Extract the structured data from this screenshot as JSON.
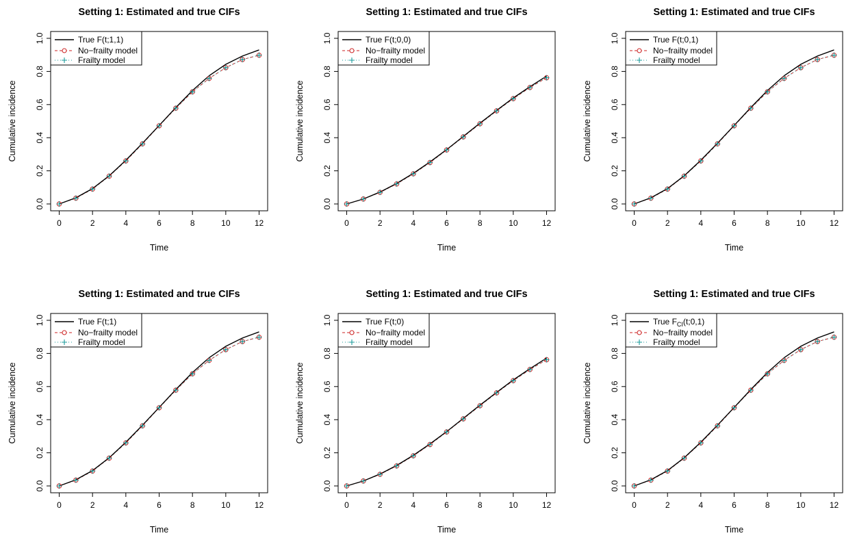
{
  "colors": {
    "true_line": "#000000",
    "no_frailty": "#cc2222",
    "frailty": "#1a9a9a",
    "background": "#ffffff"
  },
  "chart_data": [
    {
      "type": "line",
      "title": "Setting 1: Estimated and true CIFs",
      "xlabel": "Time",
      "ylabel": "Cumulative incidence",
      "xlim": [
        0,
        12
      ],
      "ylim": [
        0,
        1
      ],
      "xticks": [
        0,
        2,
        4,
        6,
        8,
        10,
        12
      ],
      "yticks": [
        0.0,
        0.2,
        0.4,
        0.6,
        0.8,
        1.0
      ],
      "ytick_labels": [
        "0.0",
        "0.2",
        "0.4",
        "0.6",
        "0.8",
        "1.0"
      ],
      "grid": false,
      "legend_position": "top-left",
      "legend": [
        {
          "label": "True F(t;1,1)",
          "style": "solid line"
        },
        {
          "label": "No−frailty model",
          "style": "dashed line with circles"
        },
        {
          "label": "Frailty model",
          "style": "dotted line with plus"
        }
      ],
      "x": [
        0,
        1,
        2,
        3,
        4,
        5,
        6,
        7,
        8,
        9,
        10,
        11,
        12
      ],
      "series": [
        {
          "name": "True F(t;1,1)",
          "values": [
            0.0,
            0.037,
            0.093,
            0.17,
            0.264,
            0.367,
            0.474,
            0.582,
            0.685,
            0.774,
            0.843,
            0.893,
            0.93
          ]
        },
        {
          "name": "No−frailty model",
          "values": [
            0.0,
            0.035,
            0.09,
            0.168,
            0.26,
            0.363,
            0.472,
            0.578,
            0.677,
            0.758,
            0.823,
            0.872,
            0.898
          ]
        },
        {
          "name": "Frailty model",
          "values": [
            0.0,
            0.035,
            0.09,
            0.168,
            0.26,
            0.363,
            0.472,
            0.578,
            0.677,
            0.758,
            0.823,
            0.872,
            0.898
          ]
        }
      ]
    },
    {
      "type": "line",
      "title": "Setting 1: Estimated and true CIFs",
      "xlabel": "Time",
      "ylabel": "Cumulative incidence",
      "xlim": [
        0,
        12
      ],
      "ylim": [
        0,
        1
      ],
      "xticks": [
        0,
        2,
        4,
        6,
        8,
        10,
        12
      ],
      "yticks": [
        0.0,
        0.2,
        0.4,
        0.6,
        0.8,
        1.0
      ],
      "ytick_labels": [
        "0.0",
        "0.2",
        "0.4",
        "0.6",
        "0.8",
        "1.0"
      ],
      "grid": false,
      "legend_position": "top-left",
      "legend": [
        {
          "label": "True F(t;0,0)",
          "style": "solid line"
        },
        {
          "label": "No−frailty model",
          "style": "dashed line with circles"
        },
        {
          "label": "Frailty model",
          "style": "dotted line with plus"
        }
      ],
      "x": [
        0,
        1,
        2,
        3,
        4,
        5,
        6,
        7,
        8,
        9,
        10,
        11,
        12
      ],
      "series": [
        {
          "name": "True F(t;0,0)",
          "values": [
            0.0,
            0.03,
            0.072,
            0.124,
            0.185,
            0.254,
            0.328,
            0.408,
            0.488,
            0.565,
            0.64,
            0.708,
            0.772
          ]
        },
        {
          "name": "No−frailty model",
          "values": [
            0.0,
            0.03,
            0.07,
            0.121,
            0.182,
            0.25,
            0.326,
            0.405,
            0.484,
            0.562,
            0.636,
            0.703,
            0.762
          ]
        },
        {
          "name": "Frailty model",
          "values": [
            0.0,
            0.03,
            0.07,
            0.121,
            0.182,
            0.25,
            0.326,
            0.405,
            0.484,
            0.562,
            0.636,
            0.703,
            0.762
          ]
        }
      ]
    },
    {
      "type": "line",
      "title": "Setting 1: Estimated and true CIFs",
      "xlabel": "Time",
      "ylabel": "Cumulative incidence",
      "xlim": [
        0,
        12
      ],
      "ylim": [
        0,
        1
      ],
      "xticks": [
        0,
        2,
        4,
        6,
        8,
        10,
        12
      ],
      "yticks": [
        0.0,
        0.2,
        0.4,
        0.6,
        0.8,
        1.0
      ],
      "ytick_labels": [
        "0.0",
        "0.2",
        "0.4",
        "0.6",
        "0.8",
        "1.0"
      ],
      "grid": false,
      "legend_position": "top-left",
      "legend": [
        {
          "label": "True F(t;0,1)",
          "style": "solid line"
        },
        {
          "label": "No−frailty model",
          "style": "dashed line with circles"
        },
        {
          "label": "Frailty model",
          "style": "dotted line with plus"
        }
      ],
      "x": [
        0,
        1,
        2,
        3,
        4,
        5,
        6,
        7,
        8,
        9,
        10,
        11,
        12
      ],
      "series": [
        {
          "name": "True F(t;0,1)",
          "values": [
            0.0,
            0.037,
            0.093,
            0.17,
            0.264,
            0.367,
            0.474,
            0.582,
            0.685,
            0.774,
            0.843,
            0.893,
            0.93
          ]
        },
        {
          "name": "No−frailty model",
          "values": [
            0.0,
            0.035,
            0.09,
            0.168,
            0.26,
            0.363,
            0.472,
            0.578,
            0.677,
            0.758,
            0.823,
            0.872,
            0.898
          ]
        },
        {
          "name": "Frailty model",
          "values": [
            0.0,
            0.035,
            0.09,
            0.168,
            0.26,
            0.363,
            0.472,
            0.578,
            0.677,
            0.758,
            0.823,
            0.872,
            0.898
          ]
        }
      ]
    },
    {
      "type": "line",
      "title": "Setting 1: Estimated and true CIFs",
      "xlabel": "Time",
      "ylabel": "Cumulative incidence",
      "xlim": [
        0,
        12
      ],
      "ylim": [
        0,
        1
      ],
      "xticks": [
        0,
        2,
        4,
        6,
        8,
        10,
        12
      ],
      "yticks": [
        0.0,
        0.2,
        0.4,
        0.6,
        0.8,
        1.0
      ],
      "ytick_labels": [
        "0.0",
        "0.2",
        "0.4",
        "0.6",
        "0.8",
        "1.0"
      ],
      "grid": false,
      "legend_position": "top-left",
      "legend": [
        {
          "label": "True F(t;1)",
          "style": "solid line"
        },
        {
          "label": "No−frailty model",
          "style": "dashed line with circles"
        },
        {
          "label": "Frailty model",
          "style": "dotted line with plus"
        }
      ],
      "x": [
        0,
        1,
        2,
        3,
        4,
        5,
        6,
        7,
        8,
        9,
        10,
        11,
        12
      ],
      "series": [
        {
          "name": "True F(t;1)",
          "values": [
            0.0,
            0.037,
            0.093,
            0.17,
            0.264,
            0.367,
            0.474,
            0.582,
            0.685,
            0.774,
            0.843,
            0.893,
            0.93
          ]
        },
        {
          "name": "No−frailty model",
          "values": [
            0.0,
            0.035,
            0.09,
            0.168,
            0.26,
            0.363,
            0.472,
            0.578,
            0.677,
            0.758,
            0.823,
            0.872,
            0.898
          ]
        },
        {
          "name": "Frailty model",
          "values": [
            0.0,
            0.035,
            0.09,
            0.168,
            0.26,
            0.363,
            0.472,
            0.578,
            0.677,
            0.758,
            0.823,
            0.872,
            0.898
          ]
        }
      ]
    },
    {
      "type": "line",
      "title": "Setting 1: Estimated and true CIFs",
      "xlabel": "Time",
      "ylabel": "Cumulative incidence",
      "xlim": [
        0,
        12
      ],
      "ylim": [
        0,
        1
      ],
      "xticks": [
        0,
        2,
        4,
        6,
        8,
        10,
        12
      ],
      "yticks": [
        0.0,
        0.2,
        0.4,
        0.6,
        0.8,
        1.0
      ],
      "ytick_labels": [
        "0.0",
        "0.2",
        "0.4",
        "0.6",
        "0.8",
        "1.0"
      ],
      "grid": false,
      "legend_position": "top-left",
      "legend": [
        {
          "label": "True F(t;0)",
          "style": "solid line"
        },
        {
          "label": "No−frailty model",
          "style": "dashed line with circles"
        },
        {
          "label": "Frailty model",
          "style": "dotted line with plus"
        }
      ],
      "x": [
        0,
        1,
        2,
        3,
        4,
        5,
        6,
        7,
        8,
        9,
        10,
        11,
        12
      ],
      "series": [
        {
          "name": "True F(t;0)",
          "values": [
            0.0,
            0.03,
            0.072,
            0.124,
            0.185,
            0.254,
            0.328,
            0.408,
            0.488,
            0.565,
            0.64,
            0.708,
            0.772
          ]
        },
        {
          "name": "No−frailty model",
          "values": [
            0.0,
            0.03,
            0.07,
            0.121,
            0.182,
            0.25,
            0.326,
            0.405,
            0.484,
            0.562,
            0.636,
            0.703,
            0.762
          ]
        },
        {
          "name": "Frailty model",
          "values": [
            0.0,
            0.03,
            0.07,
            0.121,
            0.182,
            0.25,
            0.326,
            0.405,
            0.484,
            0.562,
            0.636,
            0.703,
            0.762
          ]
        }
      ]
    },
    {
      "type": "line",
      "title": "Setting 1: Estimated and true CIFs",
      "xlabel": "Time",
      "ylabel": "Cumulative incidence",
      "xlim": [
        0,
        12
      ],
      "ylim": [
        0,
        1
      ],
      "xticks": [
        0,
        2,
        4,
        6,
        8,
        10,
        12
      ],
      "yticks": [
        0.0,
        0.2,
        0.4,
        0.6,
        0.8,
        1.0
      ],
      "ytick_labels": [
        "0.0",
        "0.2",
        "0.4",
        "0.6",
        "0.8",
        "1.0"
      ],
      "grid": false,
      "legend_position": "top-left",
      "legend": [
        {
          "label": "True F",
          "label_subscript": "CI",
          "label_suffix": "(t;0,1)",
          "style": "solid line"
        },
        {
          "label": "No−frailty model",
          "style": "dashed line with circles"
        },
        {
          "label": "Frailty model",
          "style": "dotted line with plus"
        }
      ],
      "x": [
        0,
        1,
        2,
        3,
        4,
        5,
        6,
        7,
        8,
        9,
        10,
        11,
        12
      ],
      "series": [
        {
          "name": "True FCI(t;0,1)",
          "values": [
            0.0,
            0.037,
            0.093,
            0.17,
            0.264,
            0.367,
            0.474,
            0.582,
            0.685,
            0.774,
            0.843,
            0.893,
            0.93
          ]
        },
        {
          "name": "No−frailty model",
          "values": [
            0.0,
            0.035,
            0.09,
            0.168,
            0.26,
            0.363,
            0.472,
            0.578,
            0.677,
            0.758,
            0.823,
            0.872,
            0.898
          ]
        },
        {
          "name": "Frailty model",
          "values": [
            0.0,
            0.035,
            0.09,
            0.168,
            0.26,
            0.363,
            0.472,
            0.578,
            0.677,
            0.758,
            0.823,
            0.872,
            0.898
          ]
        }
      ]
    }
  ]
}
